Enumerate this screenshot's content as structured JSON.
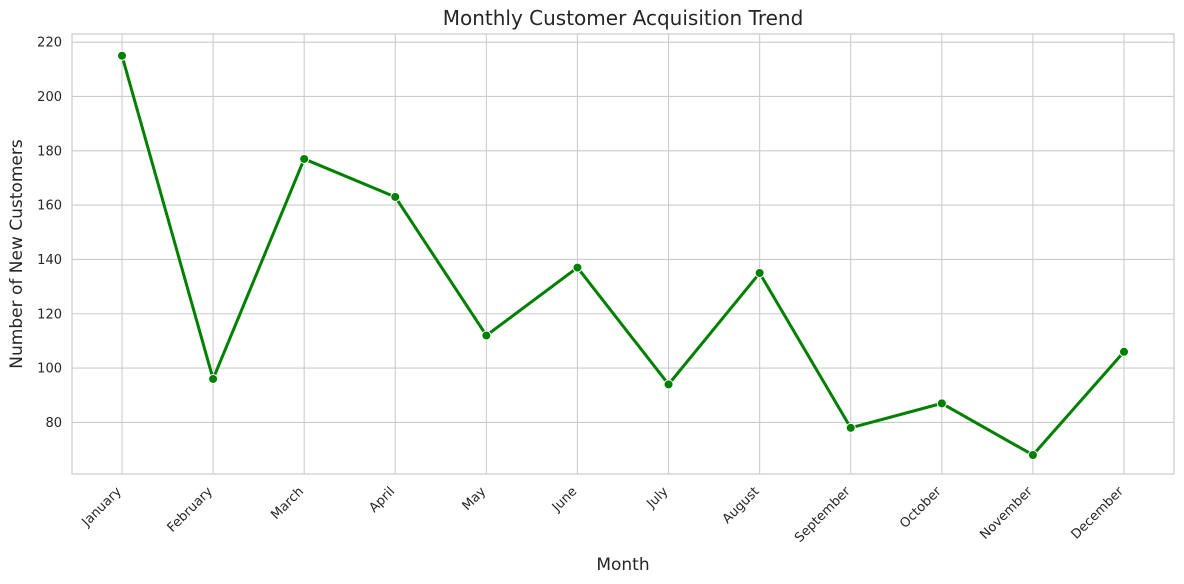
{
  "chart_data": {
    "type": "line",
    "title": "Monthly Customer Acquisition Trend",
    "xlabel": "Month",
    "ylabel": "Number of New Customers",
    "categories": [
      "January",
      "February",
      "March",
      "April",
      "May",
      "June",
      "July",
      "August",
      "September",
      "October",
      "November",
      "December"
    ],
    "series": [
      {
        "values": [
          215,
          96,
          177,
          163,
          112,
          137,
          94,
          135,
          78,
          87,
          68,
          106
        ]
      }
    ],
    "ylim": [
      61,
      223
    ],
    "yticks": [
      80,
      100,
      120,
      140,
      160,
      180,
      200,
      220
    ],
    "grid": true,
    "line_color": "#008000",
    "grid_color": "#cccccc",
    "frame_color": "#cccccc"
  }
}
